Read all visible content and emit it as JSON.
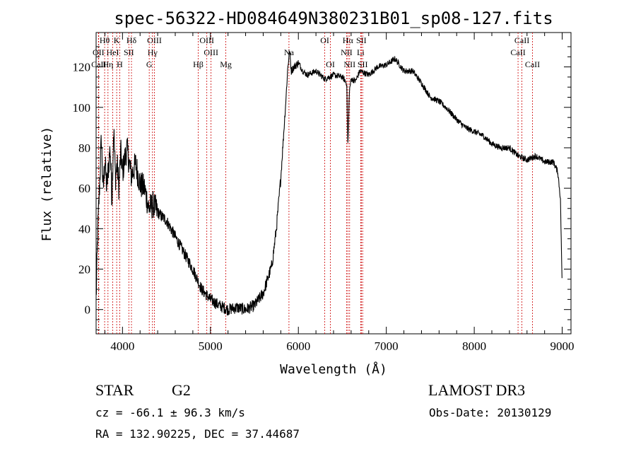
{
  "chart_data": {
    "type": "line",
    "title": "spec-56322-HD084649N380231B01_sp08-127.fits",
    "xlabel": "Wavelength (Å)",
    "ylabel": "Flux (relative)",
    "xlim": [
      3700,
      9100
    ],
    "ylim": [
      -12,
      137
    ],
    "x_ticks": [
      4000,
      5000,
      6000,
      7000,
      8000,
      9000
    ],
    "y_ticks": [
      0,
      20,
      40,
      60,
      80,
      100,
      120
    ],
    "line_color": "#000000",
    "marker_color": "#cc0000",
    "series": [
      {
        "name": "spectrum",
        "x": [
          3700,
          3720,
          3740,
          3760,
          3780,
          3800,
          3820,
          3840,
          3860,
          3880,
          3900,
          3920,
          3940,
          3960,
          3980,
          4000,
          4050,
          4100,
          4150,
          4200,
          4250,
          4300,
          4350,
          4400,
          4500,
          4600,
          4700,
          4800,
          4900,
          5000,
          5100,
          5200,
          5300,
          5400,
          5500,
          5600,
          5650,
          5700,
          5750,
          5800,
          5830,
          5860,
          5880,
          5900,
          5920,
          5950,
          6000,
          6050,
          6100,
          6200,
          6300,
          6400,
          6500,
          6550,
          6563,
          6580,
          6600,
          6650,
          6700,
          6800,
          6900,
          7000,
          7100,
          7200,
          7300,
          7400,
          7500,
          7600,
          7700,
          7800,
          7900,
          8000,
          8100,
          8200,
          8300,
          8400,
          8500,
          8600,
          8700,
          8800,
          8900,
          8950,
          8980,
          9000
        ],
        "y": [
          5,
          40,
          62,
          85,
          58,
          75,
          60,
          70,
          80,
          55,
          90,
          65,
          72,
          60,
          78,
          68,
          80,
          66,
          72,
          62,
          60,
          50,
          52,
          48,
          44,
          36,
          28,
          20,
          10,
          5,
          2,
          0,
          1,
          0,
          2,
          8,
          15,
          22,
          40,
          65,
          85,
          105,
          120,
          128,
          118,
          120,
          122,
          118,
          116,
          118,
          114,
          116,
          115,
          112,
          80,
          108,
          114,
          113,
          118,
          116,
          120,
          121,
          124,
          118,
          118,
          112,
          105,
          103,
          99,
          94,
          90,
          88,
          86,
          82,
          80,
          80,
          76,
          74,
          76,
          73,
          73,
          68,
          55,
          10
        ]
      }
    ],
    "line_markers": [
      {
        "label": "Hθ",
        "wavelength": 3797,
        "row": 0
      },
      {
        "label": "OII",
        "wavelength": 3727,
        "row": 1
      },
      {
        "label": "CaII",
        "wavelength": 3730,
        "row": 2
      },
      {
        "label": "K",
        "wavelength": 3934,
        "row": 0
      },
      {
        "label": "HeI",
        "wavelength": 3889,
        "row": 1
      },
      {
        "label": "Hη",
        "wavelength": 3835,
        "row": 2
      },
      {
        "label": "SII",
        "wavelength": 4072,
        "row": 1
      },
      {
        "label": "H",
        "wavelength": 3969,
        "row": 2
      },
      {
        "label": "Hδ",
        "wavelength": 4102,
        "row": 0
      },
      {
        "label": "OIII",
        "wavelength": 4363,
        "row": 0
      },
      {
        "label": "Hγ",
        "wavelength": 4341,
        "row": 1
      },
      {
        "label": "G",
        "wavelength": 4304,
        "row": 2
      },
      {
        "label": "OIII",
        "wavelength": 4959,
        "row": 0
      },
      {
        "label": "OIII",
        "wavelength": 5007,
        "row": 1
      },
      {
        "label": "Hβ",
        "wavelength": 4861,
        "row": 2
      },
      {
        "label": "Mg",
        "wavelength": 5175,
        "row": 2
      },
      {
        "label": "Na",
        "wavelength": 5893,
        "row": 1
      },
      {
        "label": "OI",
        "wavelength": 6300,
        "row": 0
      },
      {
        "label": "OI",
        "wavelength": 6364,
        "row": 2
      },
      {
        "label": "Hα",
        "wavelength": 6563,
        "row": 0
      },
      {
        "label": "SII",
        "wavelength": 6716,
        "row": 0
      },
      {
        "label": "NII",
        "wavelength": 6548,
        "row": 1
      },
      {
        "label": "Li",
        "wavelength": 6708,
        "row": 1
      },
      {
        "label": "NII",
        "wavelength": 6583,
        "row": 2
      },
      {
        "label": "SII",
        "wavelength": 6731,
        "row": 2
      },
      {
        "label": "CaII",
        "wavelength": 8542,
        "row": 0
      },
      {
        "label": "CaII",
        "wavelength": 8498,
        "row": 1
      },
      {
        "label": "CaII",
        "wavelength": 8662,
        "row": 2
      }
    ]
  },
  "info": {
    "object_class": "STAR",
    "subclass": "G2",
    "survey": "LAMOST DR3",
    "cz": "cz = -66.1 ± 96.3 km/s",
    "obs_date": "Obs-Date: 20130129",
    "coords": "RA = 132.90225, DEC =  37.44687"
  }
}
